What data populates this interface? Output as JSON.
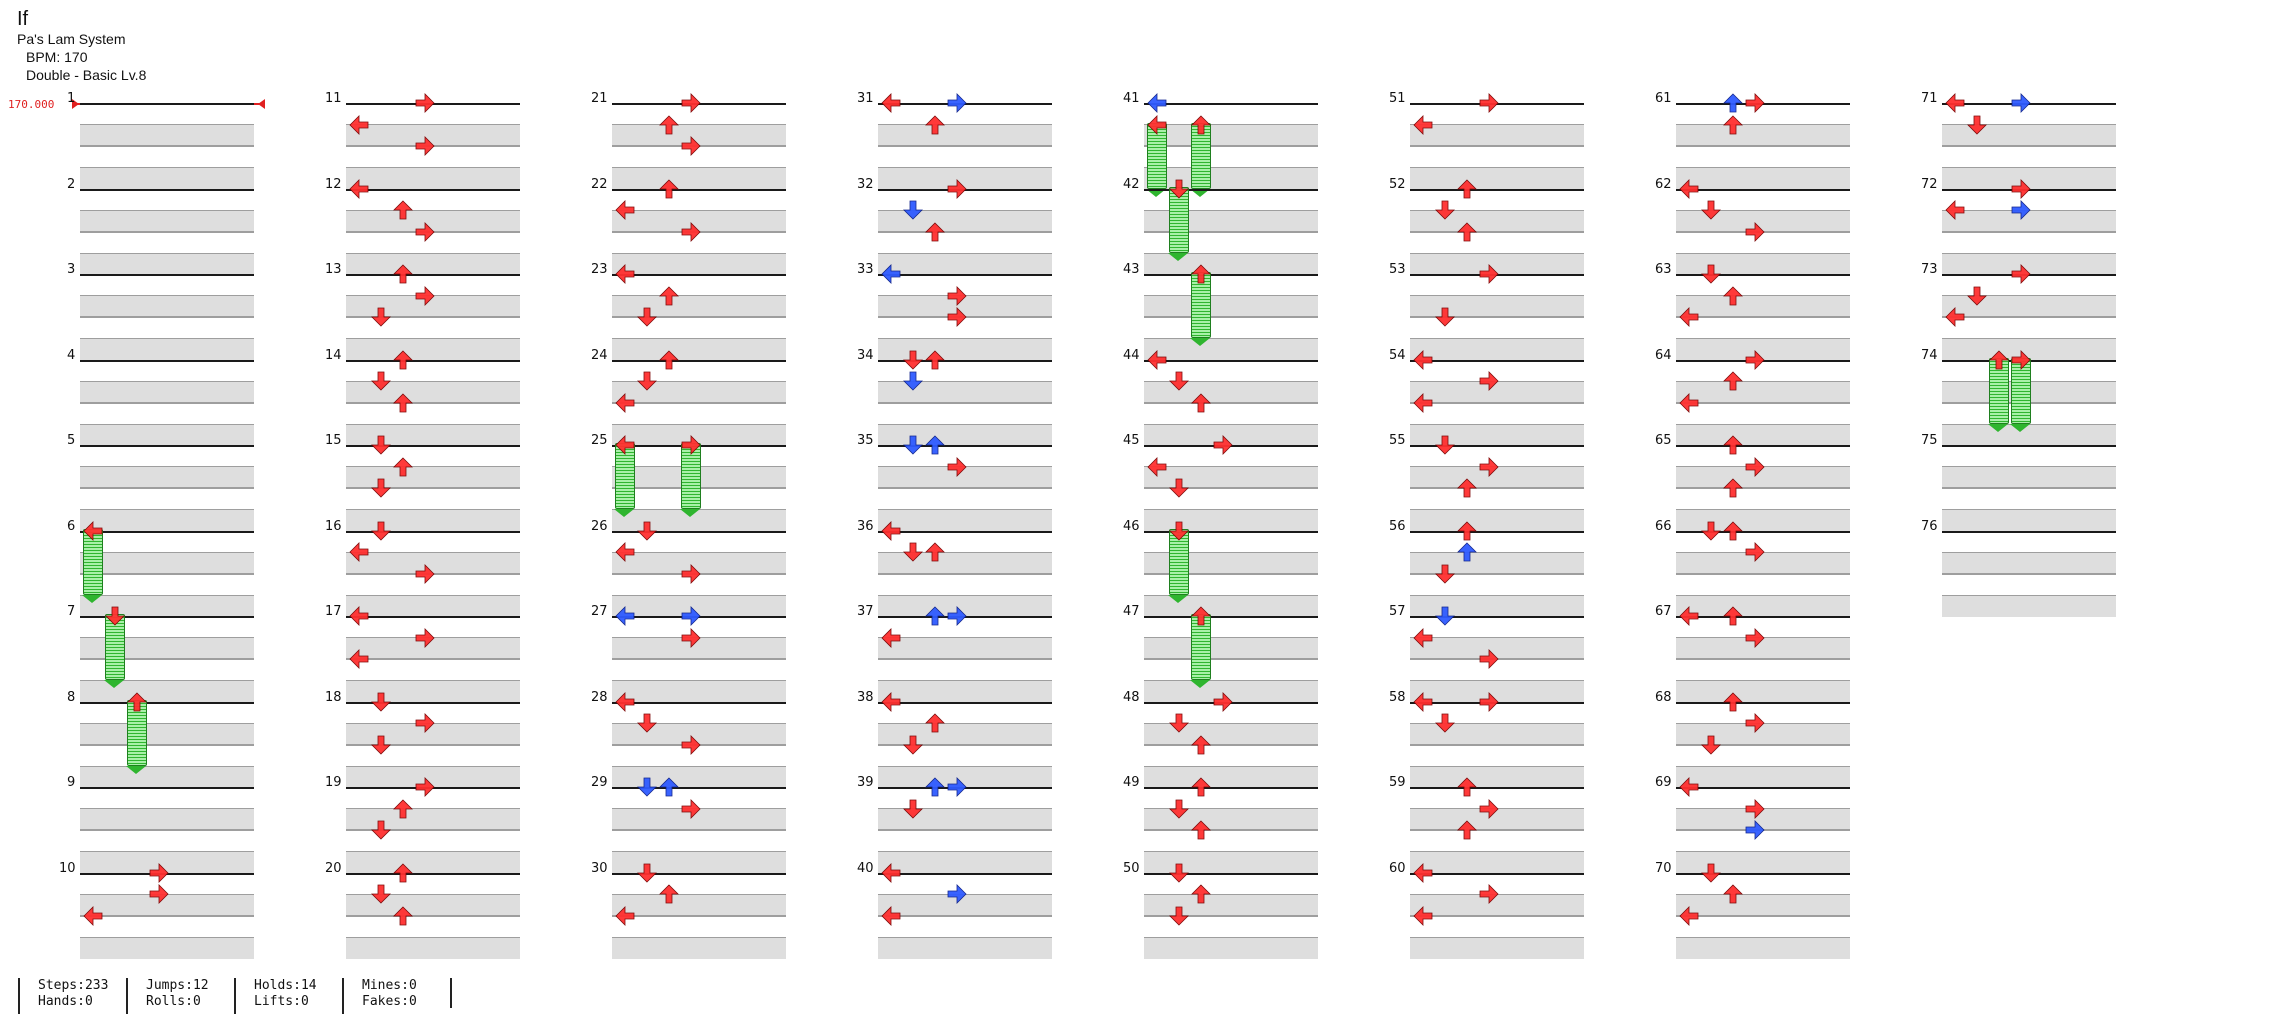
{
  "header": {
    "title": "If",
    "system": "Pa's Lam System",
    "bpm": "BPM: 170",
    "difficulty": "Double - Basic  Lv.8"
  },
  "bpm_marker": "170.000",
  "measure_labels": [
    "1",
    "2",
    "3",
    "4",
    "5",
    "6",
    "7",
    "8",
    "9",
    "10",
    "11",
    "12",
    "13",
    "14",
    "15",
    "16",
    "17",
    "18",
    "19",
    "20",
    "21",
    "22",
    "23",
    "24",
    "25",
    "26",
    "27",
    "28",
    "29",
    "30",
    "31",
    "32",
    "33",
    "34",
    "35",
    "36",
    "37",
    "38",
    "39",
    "40",
    "41",
    "42",
    "43",
    "44",
    "45",
    "46",
    "47",
    "48",
    "49",
    "50",
    "51",
    "52",
    "53",
    "54",
    "55",
    "56",
    "57",
    "58",
    "59",
    "60",
    "61",
    "62",
    "63",
    "64",
    "65",
    "66",
    "67",
    "68",
    "69",
    "70",
    "71",
    "72",
    "73",
    "74",
    "75",
    "76"
  ],
  "stats": {
    "steps": "Steps:233",
    "hands": "Hands:0",
    "jumps": "Jumps:12",
    "rolls": "Rolls:0",
    "holds": "Holds:14",
    "lifts": "Lifts:0",
    "mines": "Mines:0",
    "fakes": "Fakes:0"
  },
  "colors": {
    "quarter_note": "#ff3030",
    "eighth_note": "#2f5bff",
    "hold_body": "#2fb52f",
    "bpm_marker": "#e02020"
  },
  "notes_by_measure": {
    "6": [
      [
        0,
        "L",
        "r",
        true
      ]
    ],
    "7": [
      [
        0,
        "D",
        "r",
        true
      ]
    ],
    "8": [
      [
        0,
        "U",
        "r",
        true
      ]
    ],
    "10": [
      [
        0,
        "R",
        "r"
      ],
      [
        1,
        "R",
        "r"
      ],
      [
        2,
        "L",
        "r"
      ]
    ],
    "11": [
      [
        0,
        "R",
        "r"
      ],
      [
        1,
        "L",
        "r"
      ],
      [
        2,
        "R",
        "r"
      ]
    ],
    "12": [
      [
        0,
        "L",
        "r"
      ],
      [
        1,
        "U",
        "r"
      ],
      [
        2,
        "R",
        "r"
      ]
    ],
    "13": [
      [
        0,
        "U",
        "r"
      ],
      [
        1,
        "R",
        "r"
      ],
      [
        2,
        "D",
        "r"
      ]
    ],
    "14": [
      [
        0,
        "U",
        "r"
      ],
      [
        1,
        "D",
        "r"
      ],
      [
        2,
        "U",
        "r"
      ]
    ],
    "15": [
      [
        0,
        "D",
        "r"
      ],
      [
        1,
        "U",
        "r"
      ],
      [
        2,
        "D",
        "r"
      ]
    ],
    "16": [
      [
        0,
        "D",
        "r"
      ],
      [
        1,
        "L",
        "r"
      ],
      [
        2,
        "R",
        "r"
      ]
    ],
    "17": [
      [
        0,
        "L",
        "r"
      ],
      [
        1,
        "R",
        "r"
      ],
      [
        2,
        "L",
        "r"
      ]
    ],
    "18": [
      [
        0,
        "D",
        "r"
      ],
      [
        1,
        "R",
        "r"
      ],
      [
        2,
        "D",
        "r"
      ]
    ],
    "19": [
      [
        0,
        "R",
        "r"
      ],
      [
        1,
        "U",
        "r"
      ],
      [
        2,
        "D",
        "r"
      ]
    ],
    "20": [
      [
        0,
        "U",
        "r"
      ],
      [
        1,
        "D",
        "r"
      ],
      [
        2,
        "U",
        "r"
      ]
    ],
    "21": [
      [
        0,
        "R",
        "r"
      ],
      [
        1,
        "U",
        "r"
      ],
      [
        2,
        "R",
        "r"
      ]
    ],
    "22": [
      [
        0,
        "U",
        "r"
      ],
      [
        1,
        "L",
        "r"
      ],
      [
        2,
        "R",
        "r"
      ]
    ],
    "23": [
      [
        0,
        "L",
        "r"
      ],
      [
        1,
        "U",
        "r"
      ],
      [
        2,
        "D",
        "r"
      ]
    ],
    "24": [
      [
        0,
        "U",
        "r"
      ],
      [
        1,
        "D",
        "r"
      ],
      [
        2,
        "L",
        "r"
      ]
    ],
    "25": [
      [
        0,
        "L",
        "r",
        true
      ],
      [
        0,
        "R",
        "r",
        true
      ]
    ],
    "26": [
      [
        0,
        "D",
        "r"
      ],
      [
        1,
        "L",
        "r"
      ],
      [
        2,
        "R",
        "r"
      ]
    ],
    "27": [
      [
        0,
        "R",
        "b"
      ],
      [
        0,
        "L",
        "b"
      ],
      [
        1,
        "R",
        "r"
      ]
    ],
    "28": [
      [
        0,
        "L",
        "r"
      ],
      [
        1,
        "D",
        "r"
      ],
      [
        2,
        "R",
        "r"
      ]
    ],
    "29": [
      [
        0,
        "D",
        "b"
      ],
      [
        0,
        "U",
        "b"
      ],
      [
        1,
        "R",
        "r"
      ]
    ],
    "30": [
      [
        0,
        "D",
        "r"
      ],
      [
        1,
        "U",
        "r"
      ],
      [
        2,
        "L",
        "r"
      ]
    ],
    "31": [
      [
        0,
        "R",
        "b"
      ],
      [
        0,
        "L",
        "r"
      ],
      [
        1,
        "U",
        "r"
      ]
    ],
    "32": [
      [
        0,
        "R",
        "r"
      ],
      [
        1,
        "D",
        "b"
      ],
      [
        2,
        "U",
        "r"
      ]
    ],
    "33": [
      [
        0,
        "L",
        "b"
      ],
      [
        1,
        "R",
        "r"
      ],
      [
        2,
        "R",
        "r"
      ]
    ],
    "34": [
      [
        0,
        "D",
        "r"
      ],
      [
        0,
        "U",
        "r"
      ],
      [
        1,
        "D",
        "b"
      ]
    ],
    "35": [
      [
        0,
        "D",
        "b"
      ],
      [
        0,
        "U",
        "b"
      ],
      [
        1,
        "R",
        "r"
      ]
    ],
    "36": [
      [
        0,
        "L",
        "r"
      ],
      [
        1,
        "D",
        "r"
      ],
      [
        1,
        "U",
        "r"
      ]
    ],
    "37": [
      [
        0,
        "U",
        "b"
      ],
      [
        0,
        "R",
        "b"
      ],
      [
        1,
        "L",
        "r"
      ]
    ],
    "38": [
      [
        0,
        "L",
        "r"
      ],
      [
        1,
        "U",
        "r"
      ],
      [
        2,
        "D",
        "r"
      ]
    ],
    "39": [
      [
        0,
        "U",
        "b"
      ],
      [
        0,
        "R",
        "b"
      ],
      [
        1,
        "D",
        "r"
      ]
    ],
    "40": [
      [
        0,
        "L",
        "r"
      ],
      [
        1,
        "R",
        "b"
      ],
      [
        2,
        "L",
        "r"
      ]
    ],
    "41": [
      [
        0,
        "L",
        "b"
      ],
      [
        1,
        "U",
        "r",
        true
      ],
      [
        1,
        "L",
        "r",
        true
      ]
    ],
    "42": [
      [
        0,
        "D",
        "r",
        true
      ]
    ],
    "43": [
      [
        0,
        "U",
        "r",
        true
      ]
    ],
    "44": [
      [
        0,
        "L",
        "r"
      ],
      [
        1,
        "D",
        "r"
      ],
      [
        2,
        "U",
        "r"
      ]
    ],
    "45": [
      [
        0,
        "R",
        "r"
      ],
      [
        1,
        "L",
        "r"
      ],
      [
        2,
        "D",
        "r"
      ]
    ],
    "46": [
      [
        0,
        "D",
        "r",
        true
      ]
    ],
    "47": [
      [
        0,
        "U",
        "r",
        true
      ]
    ],
    "48": [
      [
        0,
        "R",
        "r"
      ],
      [
        1,
        "D",
        "r"
      ],
      [
        2,
        "U",
        "r"
      ]
    ],
    "49": [
      [
        0,
        "U",
        "r"
      ],
      [
        1,
        "D",
        "r"
      ],
      [
        2,
        "U",
        "r"
      ]
    ],
    "50": [
      [
        0,
        "D",
        "r"
      ],
      [
        1,
        "U",
        "r"
      ],
      [
        2,
        "D",
        "r"
      ]
    ],
    "51": [
      [
        0,
        "R",
        "r"
      ],
      [
        1,
        "L",
        "r"
      ]
    ],
    "52": [
      [
        0,
        "U",
        "r"
      ],
      [
        1,
        "D",
        "r"
      ],
      [
        2,
        "U",
        "r"
      ]
    ],
    "53": [
      [
        0,
        "R",
        "r"
      ],
      [
        2,
        "D",
        "r"
      ]
    ],
    "54": [
      [
        0,
        "L",
        "r"
      ],
      [
        1,
        "R",
        "r"
      ],
      [
        2,
        "L",
        "r"
      ]
    ],
    "55": [
      [
        0,
        "D",
        "r"
      ],
      [
        1,
        "R",
        "r"
      ],
      [
        2,
        "U",
        "r"
      ]
    ],
    "56": [
      [
        0,
        "U",
        "r"
      ],
      [
        1,
        "U",
        "b"
      ],
      [
        2,
        "D",
        "r"
      ]
    ],
    "57": [
      [
        0,
        "D",
        "b"
      ],
      [
        1,
        "L",
        "r"
      ],
      [
        2,
        "R",
        "r"
      ]
    ],
    "58": [
      [
        0,
        "R",
        "r"
      ],
      [
        0,
        "L",
        "r"
      ],
      [
        1,
        "D",
        "r"
      ]
    ],
    "59": [
      [
        0,
        "U",
        "r"
      ],
      [
        1,
        "R",
        "r"
      ],
      [
        2,
        "U",
        "r"
      ]
    ],
    "60": [
      [
        0,
        "L",
        "r"
      ],
      [
        1,
        "R",
        "r"
      ],
      [
        2,
        "L",
        "r"
      ]
    ],
    "61": [
      [
        0,
        "U",
        "b"
      ],
      [
        0,
        "R",
        "r"
      ],
      [
        1,
        "U",
        "r"
      ]
    ],
    "62": [
      [
        0,
        "L",
        "r"
      ],
      [
        1,
        "D",
        "r"
      ],
      [
        2,
        "R",
        "r"
      ]
    ],
    "63": [
      [
        0,
        "D",
        "r"
      ],
      [
        1,
        "U",
        "r"
      ],
      [
        2,
        "L",
        "r"
      ]
    ],
    "64": [
      [
        0,
        "R",
        "r"
      ],
      [
        1,
        "U",
        "r"
      ],
      [
        2,
        "L",
        "r"
      ]
    ],
    "65": [
      [
        0,
        "U",
        "r"
      ],
      [
        1,
        "R",
        "r"
      ],
      [
        2,
        "U",
        "r"
      ]
    ],
    "66": [
      [
        0,
        "D",
        "r"
      ],
      [
        0,
        "U",
        "r"
      ],
      [
        1,
        "R",
        "r"
      ]
    ],
    "67": [
      [
        0,
        "L",
        "r"
      ],
      [
        0,
        "U",
        "r"
      ],
      [
        1,
        "R",
        "r"
      ]
    ],
    "68": [
      [
        0,
        "U",
        "r"
      ],
      [
        1,
        "R",
        "r"
      ],
      [
        2,
        "D",
        "r"
      ]
    ],
    "69": [
      [
        0,
        "L",
        "r"
      ],
      [
        1,
        "R",
        "r"
      ],
      [
        2,
        "R",
        "b"
      ]
    ],
    "70": [
      [
        0,
        "D",
        "r"
      ],
      [
        1,
        "U",
        "r"
      ],
      [
        2,
        "L",
        "r"
      ]
    ],
    "71": [
      [
        0,
        "R",
        "b"
      ],
      [
        0,
        "L",
        "r"
      ],
      [
        1,
        "D",
        "r"
      ]
    ],
    "72": [
      [
        0,
        "R",
        "r"
      ],
      [
        1,
        "L",
        "r"
      ],
      [
        1,
        "R",
        "b"
      ]
    ],
    "73": [
      [
        0,
        "R",
        "r"
      ],
      [
        1,
        "D",
        "r"
      ],
      [
        2,
        "L",
        "r"
      ]
    ],
    "74": [
      [
        0,
        "R",
        "r",
        true
      ],
      [
        0,
        "U",
        "r",
        true
      ]
    ]
  }
}
